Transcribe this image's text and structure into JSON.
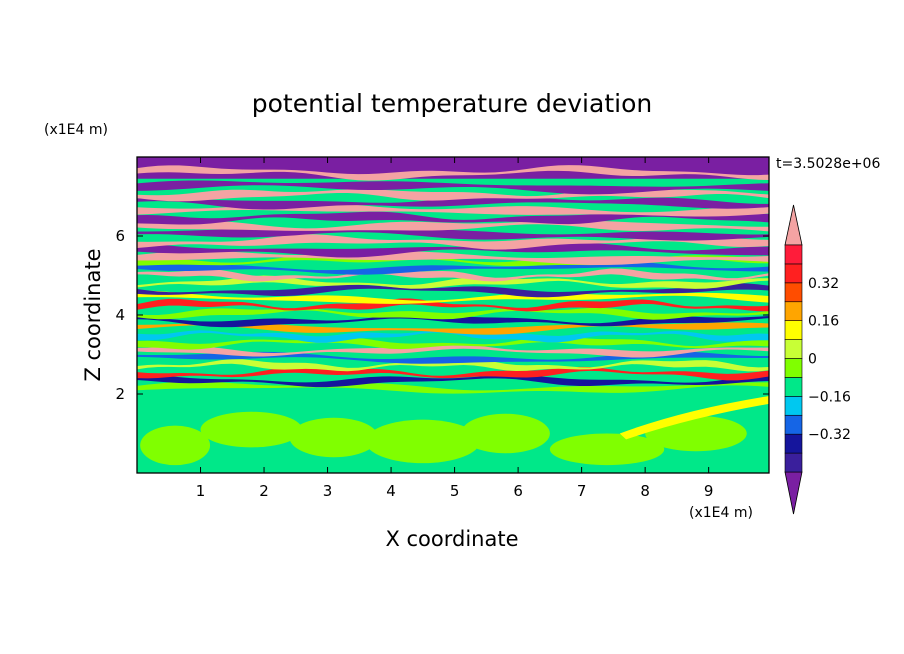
{
  "chart_data": {
    "type": "heatmap",
    "title": "potential temperature deviation",
    "xlabel": "X coordinate",
    "ylabel": "Z coordinate",
    "x_unit": "(x1E4 m)",
    "y_unit": "(x1E4 m)",
    "time_label": "t=3.5028e+06",
    "xlim": [
      0,
      9.95
    ],
    "ylim": [
      0,
      8.0
    ],
    "x_ticks": [
      "1",
      "2",
      "3",
      "4",
      "5",
      "6",
      "7",
      "8",
      "9"
    ],
    "y_ticks": [
      "2",
      "4",
      "6"
    ],
    "colorbar": {
      "levels": [
        -0.48,
        -0.4,
        -0.32,
        -0.24,
        -0.16,
        -0.08,
        0,
        0.08,
        0.16,
        0.24,
        0.32,
        0.4,
        0.48
      ],
      "colors": [
        "#7a1fa2",
        "#3a1f9c",
        "#15159c",
        "#1565e6",
        "#00c8f0",
        "#00e889",
        "#80ff00",
        "#c8ff36",
        "#ffff00",
        "#ffa500",
        "#ff4d00",
        "#ff2020",
        "#ff1c3a",
        "#f4a3a3"
      ],
      "tick_labels": [
        "0.32",
        "0.16",
        "0",
        "−0.16",
        "−0.32"
      ],
      "tick_values": [
        0.32,
        0.16,
        0,
        -0.16,
        -0.32
      ],
      "extend": "both"
    },
    "field_description_rows": [
      {
        "z_range": [
          7.4,
          8.0
        ],
        "dominant": "#7a1fa2"
      },
      {
        "z_range": [
          5.5,
          7.4
        ],
        "dominant_alternating": [
          "#f4a3a3",
          "#7a1fa2"
        ]
      },
      {
        "z_range": [
          2.1,
          5.5
        ],
        "mixed": [
          "#80ff00",
          "#00e889",
          "#ff4d00",
          "#15159c",
          "#f4a3a3",
          "#ffff00"
        ]
      },
      {
        "z_range": [
          0,
          2.1
        ],
        "dominant": "#00e889",
        "patches": "#80ff00"
      }
    ]
  }
}
